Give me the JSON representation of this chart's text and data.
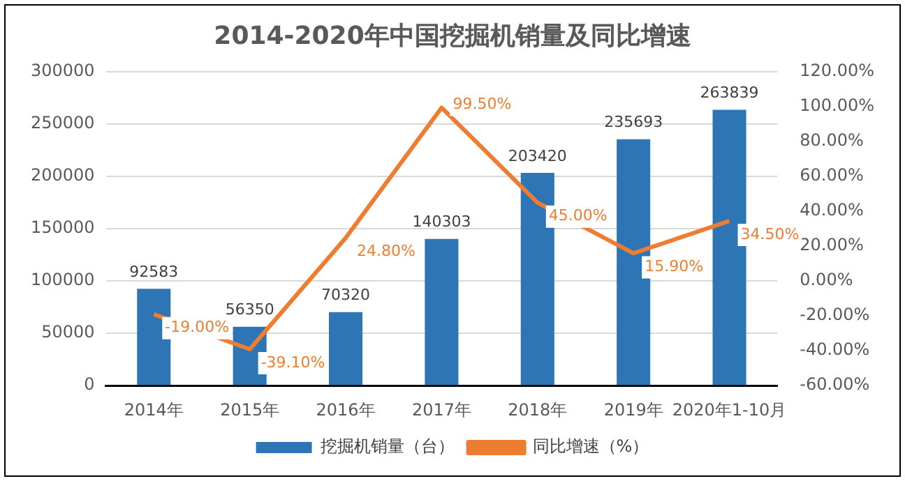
{
  "chart_data": {
    "type": "bar",
    "title": "2014-2020年中国挖掘机销量及同比增速",
    "categories": [
      "2014年",
      "2015年",
      "2016年",
      "2017年",
      "2018年",
      "2019年",
      "2020年1-10月"
    ],
    "series": [
      {
        "name": "挖掘机销量（台）",
        "color": "#2e75b6",
        "values": [
          92583,
          56350,
          70320,
          140303,
          203420,
          235693,
          263839
        ],
        "value_labels": [
          "92583",
          "56350",
          "70320",
          "140303",
          "203420",
          "235693",
          "263839"
        ]
      },
      {
        "name": "同比增速（%）",
        "type": "line",
        "axis": "y2",
        "color": "#ed7d31",
        "values": [
          -19,
          -39.1,
          24.8,
          99.5,
          45,
          15.9,
          34.5
        ],
        "value_labels": [
          "-19.00%",
          "-39.10%",
          "24.80%",
          "99.50%",
          "45.00%",
          "15.90%",
          "34.50%"
        ]
      }
    ],
    "ylim": [
      0,
      300000
    ],
    "yticks": [
      0,
      50000,
      100000,
      150000,
      200000,
      250000,
      300000
    ],
    "y2lim": [
      -60,
      120
    ],
    "y2ticks": [
      {
        "value": -60,
        "label": "-60.00%"
      },
      {
        "value": -40,
        "label": "-40.00%"
      },
      {
        "value": -20,
        "label": "-20.00%"
      },
      {
        "value": 0,
        "label": "0.00%"
      },
      {
        "value": 20,
        "label": "20.00%"
      },
      {
        "value": 40,
        "label": "40.00%"
      },
      {
        "value": 60,
        "label": "60.00%"
      },
      {
        "value": 80,
        "label": "80.00%"
      },
      {
        "value": 100,
        "label": "100.00%"
      },
      {
        "value": 120,
        "label": "120.00%"
      }
    ],
    "grid": "y",
    "legend": "bottom",
    "marker": "none",
    "line_style": "solid"
  }
}
